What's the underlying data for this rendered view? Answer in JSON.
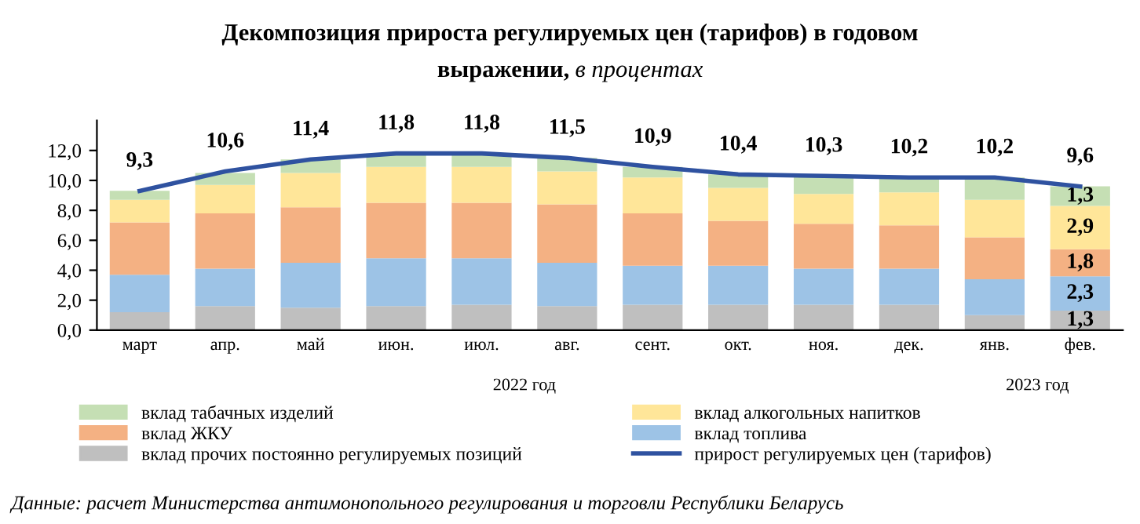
{
  "chart_data": {
    "type": "bar",
    "stacked": true,
    "title": "Декомпозиция прироста регулируемых цен (тарифов) в годовом\nвыражении,",
    "subtitle": "в процентах",
    "categories": [
      "март",
      "апр.",
      "май",
      "июн.",
      "июл.",
      "авг.",
      "сент.",
      "окт.",
      "ноя.",
      "дек.",
      "янв.",
      "фев."
    ],
    "series": [
      {
        "name": "вклад прочих постоянно регулируемых позиций",
        "color": "#bfbfbf",
        "values": [
          1.2,
          1.6,
          1.5,
          1.6,
          1.7,
          1.6,
          1.7,
          1.7,
          1.7,
          1.7,
          1.0,
          1.3
        ],
        "value_labels": [
          null,
          null,
          null,
          null,
          null,
          null,
          null,
          null,
          null,
          null,
          null,
          "1,3"
        ]
      },
      {
        "name": "вклад топлива",
        "color": "#9dc3e6",
        "values": [
          2.5,
          2.5,
          3.0,
          3.2,
          3.1,
          2.9,
          2.6,
          2.6,
          2.4,
          2.4,
          2.4,
          2.3
        ],
        "value_labels": [
          null,
          null,
          null,
          null,
          null,
          null,
          null,
          null,
          null,
          null,
          null,
          "2,3"
        ]
      },
      {
        "name": "вклад ЖКУ",
        "color": "#f4b183",
        "values": [
          3.5,
          3.7,
          3.7,
          3.7,
          3.7,
          3.9,
          3.5,
          3.0,
          3.0,
          2.9,
          2.8,
          1.8
        ],
        "value_labels": [
          null,
          null,
          null,
          null,
          null,
          null,
          null,
          null,
          null,
          null,
          null,
          "1,8"
        ]
      },
      {
        "name": "вклад алкогольных напитков",
        "color": "#ffe699",
        "values": [
          1.5,
          1.9,
          2.3,
          2.4,
          2.4,
          2.2,
          2.4,
          2.2,
          2.0,
          2.2,
          2.5,
          2.9
        ],
        "value_labels": [
          null,
          null,
          null,
          null,
          null,
          null,
          null,
          null,
          null,
          null,
          null,
          "2,9"
        ]
      },
      {
        "name": "вклад табачных изделий",
        "color": "#c5dfb4",
        "values": [
          0.6,
          0.8,
          0.9,
          0.9,
          0.9,
          0.9,
          0.7,
          0.9,
          1.2,
          1.0,
          1.5,
          1.3
        ],
        "value_labels": [
          null,
          null,
          null,
          null,
          null,
          null,
          null,
          null,
          null,
          null,
          null,
          "1,3"
        ]
      },
      {
        "name": "прирост регулируемых цен (тарифов)",
        "type": "line",
        "color": "#2f52a0",
        "values": [
          9.3,
          10.6,
          11.4,
          11.8,
          11.8,
          11.5,
          10.9,
          10.4,
          10.3,
          10.2,
          10.2,
          9.6
        ],
        "value_labels": [
          "9,3",
          "10,6",
          "11,4",
          "11,8",
          "11,8",
          "11,5",
          "10,9",
          "10,4",
          "10,3",
          "10,2",
          "10,2",
          "9,6"
        ]
      }
    ],
    "ylim": [
      0,
      14
    ],
    "yticks": [
      {
        "value": 0,
        "label": "0,0"
      },
      {
        "value": 2,
        "label": "2,0"
      },
      {
        "value": 4,
        "label": "4,0"
      },
      {
        "value": 6,
        "label": "6,0"
      },
      {
        "value": 8,
        "label": "8,0"
      },
      {
        "value": 10,
        "label": "10,0"
      },
      {
        "value": 12,
        "label": "12,0"
      }
    ],
    "grid": false,
    "legend": "bottom",
    "marker": "none",
    "line_style": "solid",
    "annotations": [
      "2022 год",
      "2023 год",
      "Данные: расчет Министерства антимонопольного регулирования и торговли Республики Беларусь"
    ]
  }
}
